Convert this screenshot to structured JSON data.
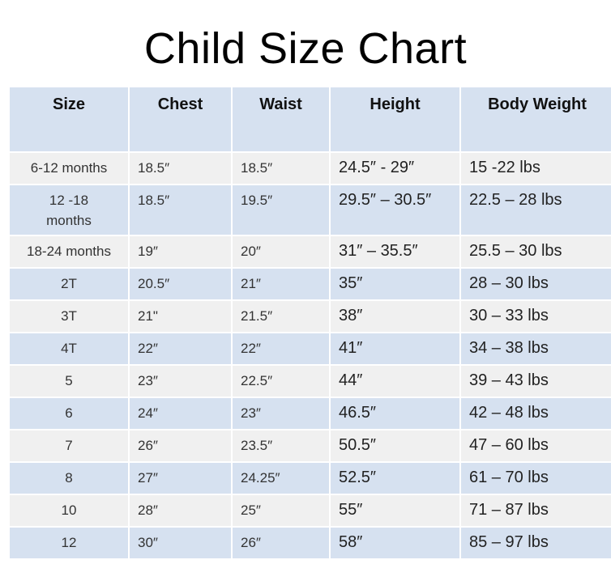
{
  "title": "Child Size Chart",
  "colors": {
    "header_row": "#d6e1f0",
    "band_blue": "#d6e1f0",
    "band_grey": "#f0f0f0"
  },
  "table": {
    "headers": [
      "Size",
      "Chest",
      "Waist",
      "Height",
      "Body Weight"
    ],
    "rows": [
      [
        "6-12 months",
        "18.5″",
        "18.5″",
        "24.5″ - 29″",
        "15 -22 lbs"
      ],
      [
        "12 -18 months",
        "18.5″",
        "19.5″",
        "29.5″ – 30.5″",
        "22.5 – 28 lbs"
      ],
      [
        "18-24 months",
        "19″",
        "20″",
        "31″ – 35.5″",
        "25.5 – 30 lbs"
      ],
      [
        "2T",
        "20.5″",
        "21″",
        "35″",
        "28 – 30 lbs"
      ],
      [
        "3T",
        "21\"",
        "21.5″",
        "38″",
        "30 – 33 lbs"
      ],
      [
        "4T",
        "22″",
        "22″",
        "41″",
        "34 – 38 lbs"
      ],
      [
        "5",
        "23″",
        "22.5″",
        "44″",
        "39 – 43 lbs"
      ],
      [
        "6",
        "24″",
        "23″",
        "46.5″",
        "42 – 48 lbs"
      ],
      [
        "7",
        "26″",
        "23.5″",
        "50.5″",
        "47 – 60 lbs"
      ],
      [
        "8",
        "27″",
        "24.25″",
        "52.5″",
        "61 – 70 lbs"
      ],
      [
        "10",
        "28″",
        "25″",
        "55″",
        "71 – 87 lbs"
      ],
      [
        "12",
        "30″",
        "26″",
        "58″",
        "85 – 97 lbs"
      ]
    ]
  }
}
